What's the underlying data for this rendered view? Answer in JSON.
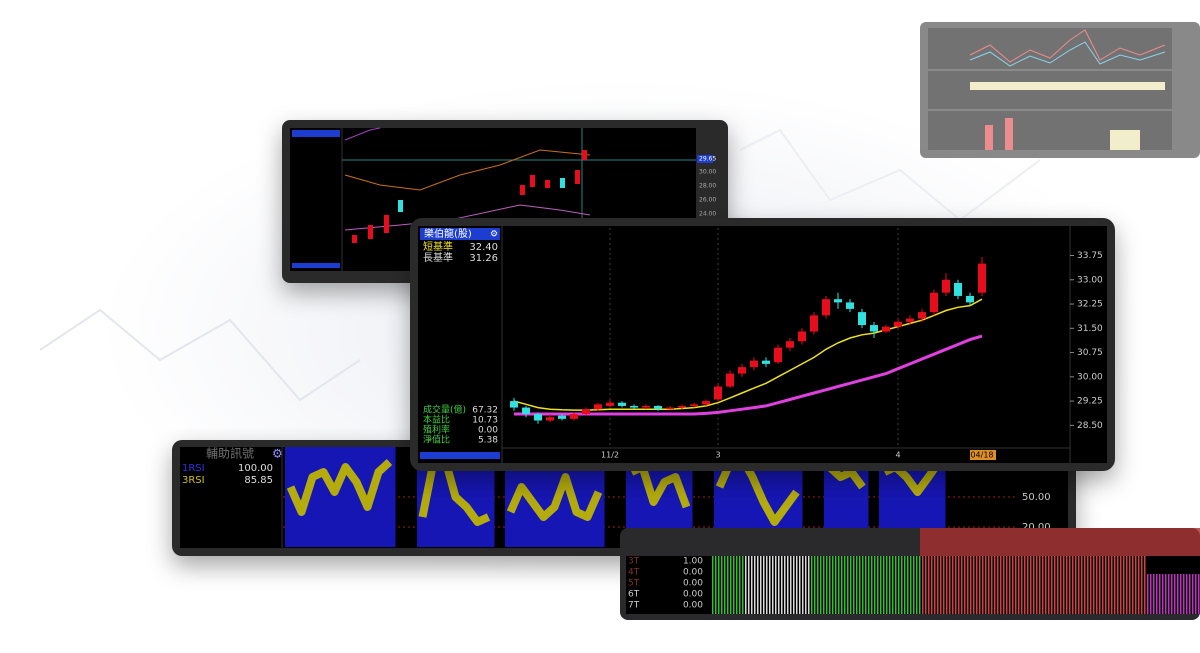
{
  "chart_data": [
    {
      "type": "candlestick",
      "title": "樂伯龍(股)",
      "x": [
        null,
        null,
        null,
        null,
        null,
        null,
        null,
        null,
        "11/2",
        null,
        null,
        null,
        null,
        null,
        null,
        null,
        null,
        "3",
        null,
        null,
        null,
        null,
        null,
        null,
        null,
        null,
        null,
        null,
        null,
        null,
        null,
        null,
        "4",
        null,
        null,
        null,
        null,
        null,
        null,
        "04/18"
      ],
      "candles": [
        [
          29.25,
          29.35,
          28.95,
          29.05
        ],
        [
          29.05,
          29.1,
          28.75,
          28.85
        ],
        [
          28.85,
          28.9,
          28.55,
          28.65
        ],
        [
          28.65,
          28.85,
          28.6,
          28.75
        ],
        [
          28.8,
          28.85,
          28.65,
          28.7
        ],
        [
          28.7,
          28.9,
          28.65,
          28.85
        ],
        [
          28.85,
          29.05,
          28.8,
          29.0
        ],
        [
          29.0,
          29.2,
          28.95,
          29.15
        ],
        [
          29.1,
          29.3,
          29.05,
          29.2
        ],
        [
          29.2,
          29.25,
          29.05,
          29.1
        ],
        [
          29.1,
          29.15,
          29.0,
          29.05
        ],
        [
          29.05,
          29.15,
          29.0,
          29.1
        ],
        [
          29.1,
          29.12,
          28.95,
          29.0
        ],
        [
          29.0,
          29.1,
          28.98,
          29.05
        ],
        [
          29.05,
          29.15,
          29.0,
          29.1
        ],
        [
          29.1,
          29.2,
          29.05,
          29.15
        ],
        [
          29.15,
          29.3,
          29.1,
          29.25
        ],
        [
          29.3,
          29.8,
          29.25,
          29.7
        ],
        [
          29.7,
          30.2,
          29.65,
          30.1
        ],
        [
          30.1,
          30.4,
          30.0,
          30.3
        ],
        [
          30.3,
          30.6,
          30.2,
          30.5
        ],
        [
          30.5,
          30.6,
          30.3,
          30.4
        ],
        [
          30.45,
          31.0,
          30.4,
          30.9
        ],
        [
          30.9,
          31.2,
          30.8,
          31.1
        ],
        [
          31.1,
          31.5,
          31.0,
          31.4
        ],
        [
          31.4,
          32.0,
          31.3,
          31.9
        ],
        [
          31.9,
          32.5,
          31.8,
          32.4
        ],
        [
          32.4,
          32.6,
          32.1,
          32.3
        ],
        [
          32.3,
          32.4,
          32.0,
          32.1
        ],
        [
          32.0,
          32.1,
          31.5,
          31.6
        ],
        [
          31.6,
          31.7,
          31.2,
          31.4
        ],
        [
          31.4,
          31.6,
          31.35,
          31.55
        ],
        [
          31.55,
          31.8,
          31.5,
          31.7
        ],
        [
          31.7,
          31.9,
          31.6,
          31.8
        ],
        [
          31.8,
          32.1,
          31.7,
          32.0
        ],
        [
          32.0,
          32.7,
          31.9,
          32.6
        ],
        [
          32.6,
          33.2,
          32.5,
          33.0
        ],
        [
          32.9,
          33.0,
          32.4,
          32.5
        ],
        [
          32.5,
          32.6,
          32.2,
          32.3
        ],
        [
          32.6,
          33.7,
          32.5,
          33.5
        ]
      ],
      "up_color": "#e8101c",
      "down_color": "#30e0e0",
      "series": [
        {
          "name": "短基準",
          "color": "#f0e020",
          "last_label": "32.40",
          "values": [
            29.25,
            29.15,
            29.05,
            29.0,
            28.98,
            28.97,
            28.97,
            28.98,
            29.0,
            29.0,
            29.0,
            29.0,
            29.0,
            29.0,
            29.02,
            29.05,
            29.1,
            29.2,
            29.35,
            29.5,
            29.65,
            29.8,
            30.0,
            30.2,
            30.4,
            30.6,
            30.85,
            31.05,
            31.2,
            31.3,
            31.35,
            31.45,
            31.55,
            31.65,
            31.75,
            31.9,
            32.05,
            32.15,
            32.2,
            32.4
          ]
        },
        {
          "name": "長基準",
          "color": "#e040e0",
          "last_label": "31.26",
          "values": [
            28.85,
            28.85,
            28.85,
            28.85,
            28.85,
            28.85,
            28.85,
            28.85,
            28.85,
            28.85,
            28.85,
            28.85,
            28.85,
            28.85,
            28.85,
            28.85,
            28.87,
            28.9,
            28.95,
            29.0,
            29.05,
            29.1,
            29.2,
            29.3,
            29.4,
            29.5,
            29.6,
            29.7,
            29.8,
            29.9,
            30.0,
            30.1,
            30.25,
            30.4,
            30.55,
            30.7,
            30.85,
            31.0,
            31.15,
            31.26
          ]
        }
      ],
      "stats": [
        {
          "label": "成交量(億)",
          "value": "67.32"
        },
        {
          "label": "本益比",
          "value": "10.73"
        },
        {
          "label": "殖利率",
          "value": "0.00"
        },
        {
          "label": "淨值比",
          "value": "5.38"
        }
      ],
      "ylim": [
        27.8,
        34.6
      ],
      "yticks": [
        33.75,
        {
          "value": 33,
          "label": "33.00"
        },
        32.25,
        {
          "value": 31.5,
          "label": "31.50"
        },
        30.75,
        {
          "value": 30,
          "label": "30.00"
        },
        29.25,
        {
          "value": 28.5,
          "label": "28.50"
        }
      ]
    },
    {
      "type": "rsi",
      "title": "輔助訊號",
      "ylim": [
        0,
        100
      ],
      "yticks": [
        {
          "value": 50,
          "label": "50.00"
        },
        {
          "value": 20,
          "label": "20.00"
        }
      ],
      "series": [
        {
          "name": "1RSI",
          "color": "#1414b4",
          "last_label": "100.00",
          "values": [
            100,
            100,
            100,
            100,
            100,
            100,
            100,
            100,
            100,
            100,
            null,
            null,
            100,
            100,
            100,
            100,
            100,
            100,
            100,
            null,
            100,
            100,
            100,
            100,
            100,
            100,
            100,
            100,
            100,
            null,
            null,
            100,
            100,
            100,
            100,
            100,
            100,
            null,
            null,
            100,
            100,
            100,
            100,
            100,
            100,
            100,
            100,
            null,
            null,
            100,
            100,
            100,
            100,
            null,
            100,
            100,
            100,
            100,
            100,
            100
          ]
        },
        {
          "name": "3RSI",
          "color": "#b4ac10",
          "last_label": "85.85",
          "values": [
            60,
            35,
            70,
            75,
            55,
            80,
            65,
            40,
            75,
            85,
            null,
            null,
            30,
            85,
            90,
            50,
            40,
            25,
            30,
            null,
            35,
            60,
            45,
            30,
            40,
            70,
            35,
            30,
            55,
            null,
            null,
            75,
            80,
            45,
            65,
            70,
            40,
            null,
            null,
            60,
            85,
            90,
            70,
            45,
            25,
            40,
            55,
            null,
            null,
            80,
            70,
            75,
            60,
            null,
            75,
            80,
            70,
            55,
            70,
            85.85
          ]
        }
      ]
    }
  ],
  "top_left_panel": {
    "price_tag": "29.65",
    "axis_labels": [
      "30.00",
      "28.00",
      "26.00",
      "24.00"
    ]
  },
  "bottom_panel": {
    "rows": [
      {
        "label": "3T",
        "value": "1.00"
      },
      {
        "label": "4T",
        "value": "0.00"
      },
      {
        "label": "5T",
        "value": "0.00"
      },
      {
        "label": "6T",
        "value": "0.00"
      },
      {
        "label": "7T",
        "value": "0.00"
      }
    ]
  }
}
